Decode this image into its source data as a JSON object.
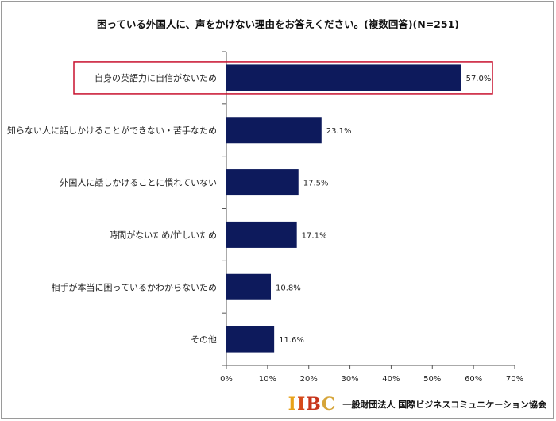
{
  "chart_data": {
    "type": "bar",
    "orientation": "horizontal",
    "title": "困っている外国人に、声をかけない理由をお答えください。(複数回答)(N=251)",
    "categories": [
      "自身の英語力に自信がないため",
      "知らない人に話しかけることができない・苦手なため",
      "外国人に話しかけることに慣れていない",
      "時間がないため/忙しいため",
      "相手が本当に困っているかわからないため",
      "その他"
    ],
    "values": [
      57.0,
      23.1,
      17.5,
      17.1,
      10.8,
      11.6
    ],
    "value_labels": [
      "57.0%",
      "23.1%",
      "17.5%",
      "17.1%",
      "10.8%",
      "11.6%"
    ],
    "xlim": [
      0,
      70
    ],
    "xticks": [
      "0%",
      "10%",
      "20%",
      "30%",
      "40%",
      "50%",
      "60%",
      "70%"
    ],
    "highlight_index": 0,
    "bar_color": "#0d1a5c",
    "highlight_color": "#c8102e",
    "grid": false
  },
  "footer": {
    "logo_letters": [
      "I",
      "I",
      "B",
      "C"
    ],
    "organization": "一般財団法人 国際ビジネスコミュニケーション協会"
  }
}
